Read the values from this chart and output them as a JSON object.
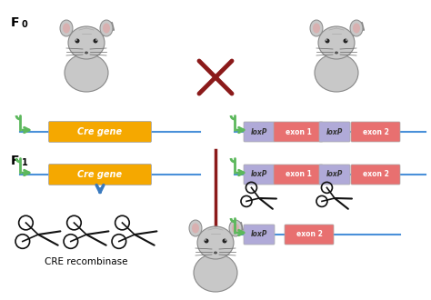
{
  "fig_width": 4.74,
  "fig_height": 3.3,
  "dpi": 100,
  "bg_color": "#ffffff",
  "cre_gene_color": "#f5a800",
  "loxp_color": "#b0aad8",
  "exon_color": "#e87070",
  "line_color": "#4a90d9",
  "arrow_color": "#5cb85c",
  "cross_color": "#8b1a1a",
  "bar_color": "#8b1a1a",
  "blue_arrow_color": "#3a7abf",
  "scissors_color": "#111111",
  "mouse_body": "#c8c8c8",
  "mouse_edge": "#888888",
  "f0_label": "F",
  "f0_sub": "0",
  "f1_label": "F",
  "f1_sub": "1",
  "cre_text": "Cre gene",
  "loxp_text": "loxP",
  "exon1_text": "exon 1",
  "exon2_text": "exon 2",
  "cre_recombinase_text": "CRE recombinase"
}
